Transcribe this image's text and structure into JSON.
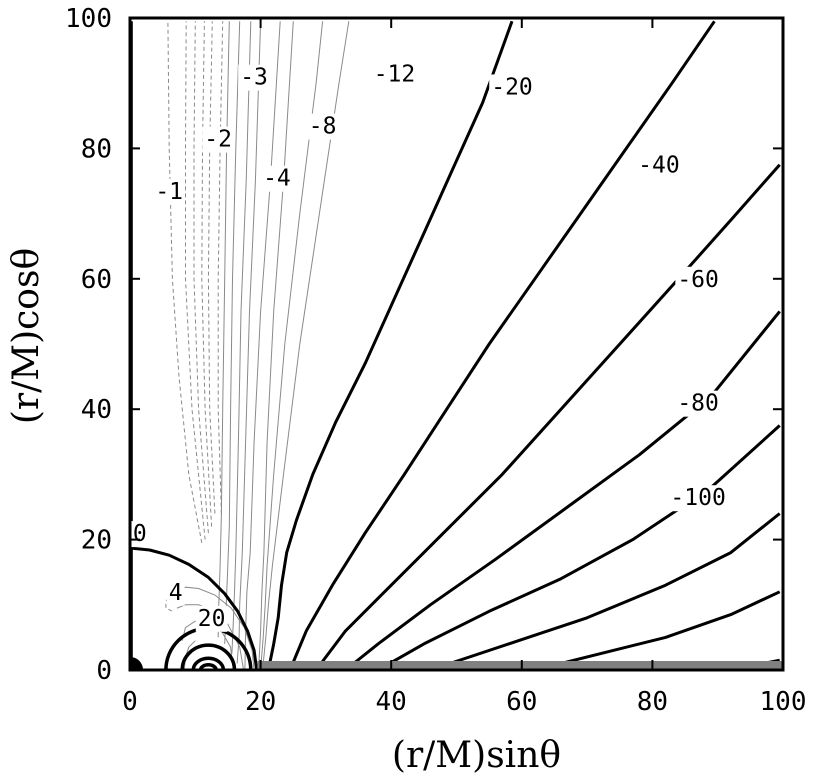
{
  "chart_data": {
    "type": "contour",
    "xlabel": "(r/M)sinθ",
    "ylabel": "(r/M)cosθ",
    "xlim": [
      0,
      100
    ],
    "ylim": [
      0,
      100
    ],
    "x_ticks": [
      "0",
      "20",
      "40",
      "60",
      "80",
      "100"
    ],
    "y_ticks": [
      "0",
      "20",
      "40",
      "60",
      "80",
      "100"
    ],
    "grid": false,
    "colors": {
      "thick": "#000000",
      "thin": "#8a8a8a",
      "dashed": "#8a8a8a",
      "equator_band": "#808080"
    },
    "contour_labels": [
      {
        "text": "-3",
        "x": 19,
        "y": 91
      },
      {
        "text": "-12",
        "x": 40.5,
        "y": 91.5
      },
      {
        "text": "-20",
        "x": 58.5,
        "y": 89.5
      },
      {
        "text": "-2",
        "x": 13.5,
        "y": 81.5
      },
      {
        "text": "-8",
        "x": 29.5,
        "y": 83.5
      },
      {
        "text": "-1",
        "x": 6,
        "y": 73.5
      },
      {
        "text": "-4",
        "x": 22.5,
        "y": 75.5
      },
      {
        "text": "-40",
        "x": 81,
        "y": 77.5
      },
      {
        "text": "-60",
        "x": 87,
        "y": 60
      },
      {
        "text": "-80",
        "x": 87,
        "y": 41
      },
      {
        "text": "-100",
        "x": 87,
        "y": 26.5
      },
      {
        "text": "0",
        "x": 1.5,
        "y": 21
      },
      {
        "text": "4",
        "x": 7,
        "y": 12
      },
      {
        "text": "20",
        "x": 12.5,
        "y": 8
      }
    ],
    "thick_contours": [
      {
        "level": "0 (axis)",
        "points": [
          [
            0.2,
            99.5
          ],
          [
            0.2,
            1.5
          ]
        ]
      },
      {
        "level": "0",
        "points": [
          [
            0.2,
            18.7
          ],
          [
            3,
            18.4
          ],
          [
            6,
            17.6
          ],
          [
            9,
            16.2
          ],
          [
            12,
            14.2
          ],
          [
            14.5,
            11.7
          ],
          [
            16.5,
            9
          ],
          [
            18,
            6
          ],
          [
            19,
            3
          ],
          [
            19.4,
            0
          ]
        ]
      },
      {
        "level": "-20",
        "points": [
          [
            21.2,
            0
          ],
          [
            22,
            4
          ],
          [
            22.7,
            8
          ],
          [
            23.2,
            13
          ],
          [
            24,
            18
          ],
          [
            25.5,
            23
          ],
          [
            28,
            30
          ],
          [
            31.5,
            38
          ],
          [
            36,
            47
          ],
          [
            40.5,
            57
          ],
          [
            45,
            67
          ],
          [
            49.5,
            77
          ],
          [
            54,
            87
          ],
          [
            58.5,
            99.5
          ]
        ]
      },
      {
        "level": "-40",
        "points": [
          [
            24.5,
            0
          ],
          [
            27,
            6
          ],
          [
            31,
            13
          ],
          [
            36,
            21
          ],
          [
            42,
            30
          ],
          [
            48.5,
            40
          ],
          [
            55,
            50
          ],
          [
            62,
            60
          ],
          [
            69,
            70
          ],
          [
            76,
            80
          ],
          [
            83,
            90
          ],
          [
            89.5,
            99.5
          ]
        ]
      },
      {
        "level": "-60",
        "points": [
          [
            28.5,
            0
          ],
          [
            33,
            6
          ],
          [
            40,
            13
          ],
          [
            48,
            21
          ],
          [
            57,
            30
          ],
          [
            66,
            40
          ],
          [
            75,
            50
          ],
          [
            84,
            60
          ],
          [
            92,
            69
          ],
          [
            99.5,
            77.5
          ]
        ]
      },
      {
        "level": "-80",
        "points": [
          [
            33,
            0
          ],
          [
            38,
            4
          ],
          [
            46,
            10
          ],
          [
            56,
            17
          ],
          [
            67,
            25
          ],
          [
            78,
            33
          ],
          [
            89,
            42
          ],
          [
            99.5,
            55
          ]
        ]
      },
      {
        "level": "-100",
        "points": [
          [
            38,
            0
          ],
          [
            45,
            4
          ],
          [
            55,
            9
          ],
          [
            66,
            14
          ],
          [
            77,
            20
          ],
          [
            89,
            28
          ],
          [
            99.5,
            37.5
          ]
        ]
      },
      {
        "level": "band-1",
        "points": [
          [
            46,
            0
          ],
          [
            58,
            4
          ],
          [
            70,
            8
          ],
          [
            82,
            13
          ],
          [
            92,
            18
          ],
          [
            99.5,
            24
          ]
        ]
      },
      {
        "level": "band-2",
        "points": [
          [
            62,
            0
          ],
          [
            72,
            2.5
          ],
          [
            82,
            5
          ],
          [
            92,
            8.5
          ],
          [
            99.5,
            12
          ]
        ]
      },
      {
        "level": "band-3",
        "points": [
          [
            92,
            0
          ],
          [
            99.5,
            1.5
          ]
        ]
      }
    ],
    "thin_contours": [
      [
        [
          20.3,
          0
        ],
        [
          20.8,
          5
        ],
        [
          21.2,
          10
        ],
        [
          21.8,
          16
        ],
        [
          23.5,
          30
        ],
        [
          26,
          50
        ],
        [
          29,
          70
        ],
        [
          32,
          90
        ],
        [
          33.5,
          99.5
        ]
      ],
      [
        [
          20,
          0
        ],
        [
          20.4,
          5
        ],
        [
          20.7,
          10
        ],
        [
          21,
          16
        ],
        [
          22,
          30
        ],
        [
          23.7,
          50
        ],
        [
          26,
          70
        ],
        [
          28.5,
          90
        ],
        [
          29.5,
          99.5
        ]
      ],
      [
        [
          19.7,
          0
        ],
        [
          20,
          6
        ],
        [
          20.2,
          12
        ],
        [
          20.5,
          18
        ],
        [
          21,
          35
        ],
        [
          22,
          55
        ],
        [
          23.5,
          75
        ],
        [
          25,
          99.5
        ]
      ],
      [
        [
          17.6,
          0
        ],
        [
          17.7,
          6
        ],
        [
          17.9,
          12
        ],
        [
          18.4,
          18
        ],
        [
          19,
          35
        ],
        [
          20,
          55
        ],
        [
          21.5,
          75
        ],
        [
          23,
          99.5
        ]
      ],
      [
        [
          16.4,
          1
        ],
        [
          16.7,
          5
        ],
        [
          16.8,
          10
        ],
        [
          17.2,
          18
        ],
        [
          17.7,
          35
        ],
        [
          18.3,
          55
        ],
        [
          19.2,
          75
        ],
        [
          20,
          99.5
        ]
      ],
      [
        [
          15.6,
          2.5
        ],
        [
          15.8,
          7
        ],
        [
          16,
          12
        ],
        [
          16.2,
          18
        ],
        [
          16.6,
          35
        ],
        [
          17,
          55
        ],
        [
          17.8,
          75
        ],
        [
          18.5,
          99.5
        ]
      ],
      [
        [
          14.5,
          4
        ],
        [
          14.7,
          9
        ],
        [
          14.9,
          14
        ],
        [
          15.2,
          22
        ],
        [
          15.4,
          40
        ],
        [
          15.7,
          60
        ],
        [
          16.2,
          80
        ],
        [
          16.8,
          99.5
        ]
      ],
      [
        [
          13.5,
          5
        ],
        [
          13.6,
          10
        ],
        [
          13.8,
          16
        ],
        [
          14,
          24
        ],
        [
          14.2,
          40
        ],
        [
          14.5,
          60
        ],
        [
          14.8,
          80
        ],
        [
          15.2,
          99.5
        ]
      ],
      [
        [
          19,
          0
        ],
        [
          18.7,
          3
        ],
        [
          17.5,
          6.5
        ],
        [
          15.5,
          9.5
        ],
        [
          13,
          11.5
        ],
        [
          10.5,
          12.5
        ],
        [
          8.5,
          12.7
        ],
        [
          7.3,
          12
        ]
      ],
      [
        [
          17.4,
          0
        ],
        [
          16.8,
          3.5
        ],
        [
          15,
          7
        ],
        [
          13,
          9
        ],
        [
          10.5,
          10
        ],
        [
          8.5,
          10
        ],
        [
          7.2,
          9.5
        ]
      ],
      [
        [
          15.8,
          0
        ],
        [
          15.4,
          3.5
        ],
        [
          14,
          6
        ],
        [
          12,
          7.3
        ],
        [
          10,
          7.5
        ],
        [
          8.5,
          6.5
        ],
        [
          8,
          4.5
        ]
      ],
      [
        [
          8.3,
          0
        ],
        [
          8.5,
          2
        ],
        [
          9,
          3.5
        ],
        [
          10,
          4.5
        ]
      ]
    ],
    "dashed_contours": [
      [
        [
          14,
          24
        ],
        [
          13.5,
          40
        ],
        [
          13.5,
          60
        ],
        [
          13.8,
          80
        ],
        [
          14.2,
          99.5
        ]
      ],
      [
        [
          13,
          24
        ],
        [
          12.2,
          40
        ],
        [
          12,
          60
        ],
        [
          12.2,
          80
        ],
        [
          12.6,
          99.5
        ]
      ],
      [
        [
          12.5,
          22
        ],
        [
          11.5,
          40
        ],
        [
          11,
          60
        ],
        [
          11.1,
          80
        ],
        [
          11.4,
          99.5
        ]
      ],
      [
        [
          12,
          21
        ],
        [
          10.5,
          40
        ],
        [
          9.8,
          60
        ],
        [
          9.8,
          80
        ],
        [
          10,
          99.5
        ]
      ],
      [
        [
          11.5,
          20
        ],
        [
          9.5,
          40
        ],
        [
          8.5,
          60
        ],
        [
          8.5,
          80
        ],
        [
          8.6,
          99.5
        ]
      ],
      [
        [
          11,
          19.5
        ],
        [
          9,
          30
        ],
        [
          7.5,
          45
        ],
        [
          6.5,
          60
        ],
        [
          6,
          80
        ],
        [
          5.8,
          99.5
        ]
      ],
      [
        [
          6.5,
          12
        ],
        [
          5.5,
          10.5
        ],
        [
          5.5,
          9.5
        ],
        [
          6.5,
          9
        ]
      ]
    ],
    "closed_contours": [
      {
        "center": [
          12,
          0
        ],
        "rx": 6.5,
        "ry": 6.4,
        "thick": true
      },
      {
        "center": [
          12,
          0
        ],
        "rx": 4,
        "ry": 3.8,
        "thick": true
      },
      {
        "center": [
          12,
          0
        ],
        "rx": 2.3,
        "ry": 1.8,
        "thick": true
      },
      {
        "center": [
          12,
          0
        ],
        "rx": 1.2,
        "ry": 0.8,
        "thick": true
      }
    ],
    "equator_band": {
      "x_start": 19.5,
      "x_end": 100
    },
    "black_hole_marker": {
      "x": 0,
      "y": 0,
      "r": 2
    }
  }
}
